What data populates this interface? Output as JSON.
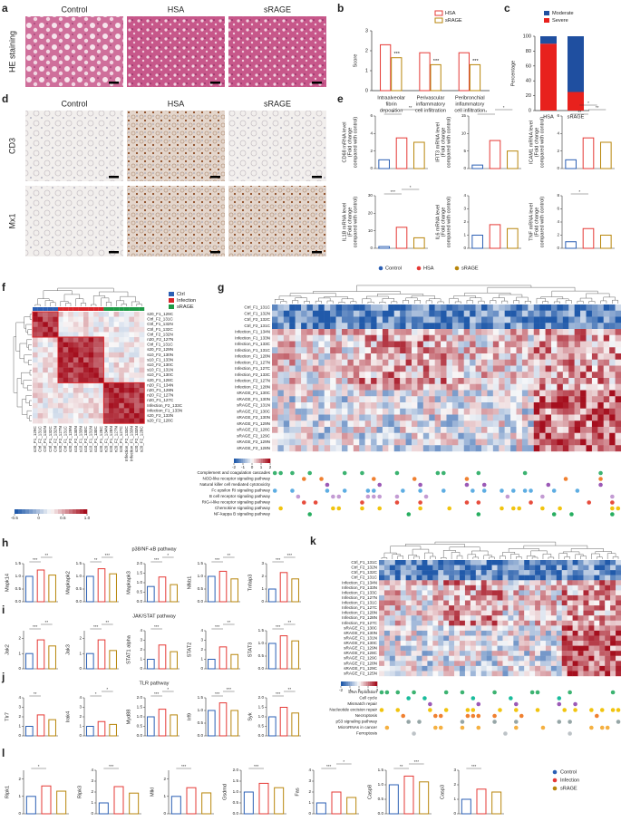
{
  "a": {
    "label": "a",
    "columns": [
      "Control",
      "HSA",
      "sRAGE"
    ],
    "row": "HE staining"
  },
  "b": {
    "label": "b",
    "type": "bar",
    "ylabel": "Score",
    "categories": [
      [
        "Intraalveolar",
        "fibrin",
        "deposition"
      ],
      [
        "Perivascular",
        "inflammatory",
        "cell infiltration"
      ],
      [
        "Peribronchial",
        "inflammatory",
        "cell infiltration"
      ]
    ],
    "series": [
      {
        "name": "HSA",
        "color": "#e53935",
        "values": [
          2.3,
          1.9,
          1.9
        ]
      },
      {
        "name": "sRAGE",
        "color": "#b8860b",
        "values": [
          1.65,
          1.3,
          1.3
        ]
      }
    ],
    "ylim": [
      0,
      3
    ],
    "yticks": [
      0,
      1,
      2,
      3
    ],
    "annotations": [
      "***",
      "***",
      "***"
    ]
  },
  "c": {
    "label": "c",
    "type": "stacked_bar",
    "ylabel": "Percentage",
    "categories": [
      "HSA",
      "sRAGE"
    ],
    "series": [
      {
        "name": "Severe",
        "color": "#e8211d",
        "values": [
          90,
          25
        ]
      },
      {
        "name": "Moderate",
        "color": "#1f4fa0",
        "values": [
          10,
          75
        ]
      }
    ],
    "ylim": [
      0,
      100
    ],
    "yticks": [
      0,
      20,
      40,
      60,
      80,
      100
    ]
  },
  "d": {
    "label": "d",
    "columns": [
      "Control",
      "HSA",
      "sRAGE"
    ],
    "rows": [
      "CD3",
      "Mx1"
    ]
  },
  "e": {
    "label": "e",
    "legend": [
      {
        "name": "Control",
        "color": "#2b5fb4"
      },
      {
        "name": "HSA",
        "color": "#e53935"
      },
      {
        "name": "sRAGE",
        "color": "#b8860b"
      }
    ],
    "charts": [
      {
        "type": "bar",
        "ylabel": [
          "CD68 mRNA level",
          "(Fold change",
          "compared with control)"
        ],
        "values": [
          1,
          3.5,
          3
        ],
        "ylim": [
          0,
          6
        ],
        "yticks": [
          0,
          2,
          4,
          6
        ],
        "sig": [
          "**",
          "**"
        ]
      },
      {
        "type": "bar",
        "ylabel": [
          "IFIT3 mRNA level",
          "(Fold change",
          "compared with control)"
        ],
        "values": [
          1,
          8,
          5
        ],
        "ylim": [
          0,
          15
        ],
        "yticks": [
          0,
          5,
          10,
          15
        ],
        "sig": [
          "*",
          "*"
        ]
      },
      {
        "type": "bar",
        "ylabel": [
          "ICAM1 mRNA level",
          "(Fold change",
          "compared with control)"
        ],
        "values": [
          1,
          3.5,
          3
        ],
        "ylim": [
          0,
          6
        ],
        "yticks": [
          0,
          2,
          4,
          6
        ],
        "sig": [
          "**",
          "**",
          "*"
        ]
      },
      {
        "type": "bar",
        "ylabel": [
          "IL1B mRNA level",
          "(Fold change",
          "compared with control)"
        ],
        "values": [
          1,
          12,
          6
        ],
        "ylim": [
          0,
          30
        ],
        "yticks": [
          0,
          10,
          20,
          30
        ],
        "sig": [
          "***",
          "*"
        ]
      },
      {
        "type": "bar",
        "ylabel": [
          "IL6 mRNA level",
          "(Fold change",
          "compared with control)"
        ],
        "values": [
          1,
          1.8,
          1.5
        ],
        "ylim": [
          0,
          4
        ],
        "yticks": [
          0,
          1,
          2,
          3,
          4
        ],
        "sig": []
      },
      {
        "type": "bar",
        "ylabel": [
          "TNF mRNA level",
          "(Fold change",
          "compared with control)"
        ],
        "values": [
          1,
          3,
          2
        ],
        "ylim": [
          0,
          8
        ],
        "yticks": [
          0,
          2,
          4,
          6,
          8
        ],
        "sig": [
          "*"
        ]
      }
    ]
  },
  "f": {
    "label": "f",
    "legend": [
      {
        "name": "Ctrl",
        "color": "#2b5fb4"
      },
      {
        "name": "Infection",
        "color": "#d9252a"
      },
      {
        "name": "sRAGE",
        "color": "#1e9a46"
      }
    ],
    "samples": [
      "s20_F1_129C",
      "Ctrl_F2_131C",
      "Ctrl_F1_132N",
      "Ctrl_F1_132C",
      "Ctrl_F2_132N",
      "n20_F2_127N",
      "Ctrl_F1_131C",
      "s20_F2_129N",
      "s10_F2_130N",
      "s10_F1_133N",
      "s10_F2_130C",
      "s10_F1_131N",
      "s10_F1_130C",
      "s20_F1_128C",
      "n20_F1_134N",
      "n20_F1_128N",
      "n20_F2_127N",
      "n20_F1_127C",
      "Infection_F2_133C",
      "Infection_F1_133N",
      "s20_F2_133N",
      "s20_F2_128C"
    ],
    "colorbar": [
      -0.5,
      0,
      0.5,
      {
        "value": 1,
        "label": "1.0"
      }
    ]
  },
  "g": {
    "label": "g",
    "samples": [
      "Ctrl_F1_131C",
      "Ctrl_F1_132N",
      "Ctrl_F2_132C",
      "Ctrl_F2_131C",
      "Infection_F1_134N",
      "Infection_F1_133N",
      "Infection_F1_133C",
      "Infection_F1_131C",
      "Infection_F1_128N",
      "Infection_F1_127N",
      "Infection_F1_127C",
      "Infection_F2_133C",
      "Infection_F2_127N",
      "Infection_F2_128N",
      "sRAGE_F1_130C",
      "sRAGE_F1_130N",
      "sRAGE_F2_131N",
      "sRAGE_F2_130C",
      "sRAGE_F2_130N",
      "sRAGE_F1_129N",
      "sRAGE_F2_128C",
      "sRAGE_F2_129C",
      "sRAGE_F2_129N",
      "sRAGE_F2_128N"
    ],
    "colorbar": [
      -2,
      -1,
      0,
      1,
      2
    ],
    "pathways": [
      {
        "name": "Complement and coagulation cascades",
        "color": "#3cb371"
      },
      {
        "name": "NOD-like receptor signaling pathway",
        "color": "#f08030"
      },
      {
        "name": "Natural killer cell mediated cytotoxicity",
        "color": "#9b59b6"
      },
      {
        "name": "Fc epsilon RI signaling pathway",
        "color": "#5dade2"
      },
      {
        "name": "B cell receptor signaling pathway",
        "color": "#c39bd3"
      },
      {
        "name": "RIG-I-like receptor signaling pathway",
        "color": "#e74c3c"
      },
      {
        "name": "Chemokine signaling pathway",
        "color": "#f1c40f"
      },
      {
        "name": "NF-kappa B signaling pathway",
        "color": "#27ae60"
      }
    ]
  },
  "h": {
    "label": "h",
    "title": "p38/NF-κB pathway",
    "charts": [
      {
        "type": "bar",
        "ylabel": [
          "Mapk14"
        ],
        "values": [
          1,
          1.25,
          1.05
        ],
        "ylim": [
          0,
          1.5
        ],
        "yticks": [
          {
            "value": 0,
            "label": "0.0"
          },
          0.5,
          {
            "value": 1,
            "label": "1.0"
          },
          1.5
        ],
        "sig": [
          "***",
          "**"
        ]
      },
      {
        "type": "bar",
        "ylabel": [
          "Mapkapk2"
        ],
        "values": [
          1,
          1.3,
          1.1
        ],
        "ylim": [
          0,
          1.5
        ],
        "yticks": [
          {
            "value": 0,
            "label": "0.0"
          },
          0.5,
          {
            "value": 1,
            "label": "1.0"
          },
          1.5
        ],
        "sig": [
          "**",
          "***"
        ]
      },
      {
        "type": "bar",
        "ylabel": [
          "Mapkapk3"
        ],
        "values": [
          0.8,
          1.3,
          0.9
        ],
        "ylim": [
          0,
          2
        ],
        "yticks": [
          {
            "value": 0,
            "label": "0.0"
          },
          0.5,
          {
            "value": 1,
            "label": "1.0"
          },
          1.5,
          {
            "value": 2,
            "label": "2.0"
          }
        ],
        "sig": [
          "***",
          "*"
        ]
      },
      {
        "type": "bar",
        "ylabel": [
          "Nfkb1"
        ],
        "values": [
          1,
          1.2,
          0.9
        ],
        "ylim": [
          0,
          1.5
        ],
        "yticks": [
          {
            "value": 0,
            "label": "0.0"
          },
          0.5,
          {
            "value": 1,
            "label": "1.0"
          },
          1.5
        ],
        "sig": [
          "***",
          "**"
        ]
      },
      {
        "type": "bar",
        "ylabel": [
          "Tnfaip3"
        ],
        "values": [
          1,
          2.3,
          1.8
        ],
        "ylim": [
          0,
          3
        ],
        "yticks": [
          0,
          1,
          2,
          3
        ],
        "sig": [
          "***",
          "***"
        ]
      }
    ]
  },
  "i": {
    "label": "i",
    "title": "JAK/STAT pathway",
    "charts": [
      {
        "type": "bar",
        "ylabel": [
          "Jak2"
        ],
        "values": [
          1,
          1.9,
          1.5
        ],
        "ylim": [
          0,
          2.5
        ],
        "yticks": [
          0,
          1,
          2
        ],
        "sig": [
          "***",
          "**"
        ]
      },
      {
        "type": "bar",
        "ylabel": [
          "Jak3"
        ],
        "values": [
          1,
          1.9,
          1.2
        ],
        "ylim": [
          0,
          2.5
        ],
        "yticks": [
          0,
          1,
          2
        ],
        "sig": [
          "***",
          "**"
        ]
      },
      {
        "type": "bar",
        "ylabel": [
          "STAT1 alpha"
        ],
        "values": [
          1,
          2.5,
          1.8
        ],
        "ylim": [
          0,
          4
        ],
        "yticks": [
          0,
          1,
          2,
          3,
          4
        ],
        "sig": [
          "***"
        ]
      },
      {
        "type": "bar",
        "ylabel": [
          "STAT2"
        ],
        "values": [
          1,
          2.3,
          1.5
        ],
        "ylim": [
          0,
          4
        ],
        "yticks": [
          0,
          1,
          2,
          3,
          4
        ],
        "sig": [
          "***",
          "**"
        ]
      },
      {
        "type": "bar",
        "ylabel": [
          "STAT3"
        ],
        "values": [
          1,
          1.3,
          1.1
        ],
        "ylim": [
          0,
          1.5
        ],
        "yticks": [
          {
            "value": 0,
            "label": "0.0"
          },
          0.5,
          {
            "value": 1,
            "label": "1.0"
          },
          1.5
        ],
        "sig": [
          "***",
          "**"
        ]
      }
    ]
  },
  "j": {
    "label": "j",
    "title": "TLR pathway",
    "charts": [
      {
        "type": "bar",
        "ylabel": [
          "Tlr7"
        ],
        "values": [
          1,
          2.2,
          1.7
        ],
        "ylim": [
          0,
          4
        ],
        "yticks": [
          0,
          1,
          2,
          3,
          4
        ],
        "sig": [
          "**"
        ]
      },
      {
        "type": "bar",
        "ylabel": [
          "Irak4"
        ],
        "values": [
          1,
          1.5,
          1.2
        ],
        "ylim": [
          0,
          4
        ],
        "yticks": [
          0,
          1,
          2,
          3,
          4
        ],
        "sig": [
          "*",
          "*"
        ]
      },
      {
        "type": "bar",
        "ylabel": [
          "Myd88"
        ],
        "values": [
          1,
          1.4,
          1.1
        ],
        "ylim": [
          0,
          2
        ],
        "yticks": [
          {
            "value": 0,
            "label": "0.0"
          },
          0.5,
          {
            "value": 1,
            "label": "1.0"
          },
          1.5,
          {
            "value": 2,
            "label": "2.0"
          }
        ],
        "sig": [
          "***",
          "*"
        ]
      },
      {
        "type": "bar",
        "ylabel": [
          "Irf9"
        ],
        "values": [
          1,
          1.3,
          1.0
        ],
        "ylim": [
          0,
          1.5
        ],
        "yticks": [
          {
            "value": 0,
            "label": "0.0"
          },
          0.5,
          {
            "value": 1,
            "label": "1.0"
          },
          1.5
        ],
        "sig": [
          "***",
          "***"
        ]
      },
      {
        "type": "bar",
        "ylabel": [
          "Syk"
        ],
        "values": [
          1,
          1.5,
          1.2
        ],
        "ylim": [
          0,
          2
        ],
        "yticks": [
          {
            "value": 0,
            "label": "0.0"
          },
          0.5,
          {
            "value": 1,
            "label": "1.0"
          },
          1.5,
          {
            "value": 2,
            "label": "2.0"
          }
        ],
        "sig": [
          "***",
          "**"
        ]
      }
    ]
  },
  "k": {
    "label": "k",
    "samples": [
      "Ctrl_F1_131C",
      "Ctrl_F2_132N",
      "Ctrl_F1_132C",
      "Ctrl_F2_131C",
      "Infection_F1_134N",
      "Infection_F2_133N",
      "Infection_F1_133C",
      "Infection_F2_127N",
      "Infection_F1_131C",
      "Infection_F1_127C",
      "Infection_F1_128N",
      "Infection_F2_128N",
      "Infection_F2_127C",
      "sRAGE_F1_130C",
      "sRAGE_F2_130N",
      "sRAGE_F1_131N",
      "sRAGE_F2_130C",
      "sRAGE_F1_129N",
      "sRAGE_F2_128C",
      "sRAGE_F2_129C",
      "sRAGE_F2_128N",
      "sRAGE_F1_129C",
      "sRAGE_F2_125N"
    ],
    "colorbar": [
      -2,
      -1,
      0,
      1,
      2
    ],
    "pathways": [
      {
        "name": "DNA replication",
        "color": "#3cb371"
      },
      {
        "name": "Cell cycle",
        "color": "#1abc9c"
      },
      {
        "name": "Mismatch repair",
        "color": "#9b59b6"
      },
      {
        "name": "Nucleotide excision repair",
        "color": "#f1c40f"
      },
      {
        "name": "Necroptosis",
        "color": "#f08030"
      },
      {
        "name": "p53 signaling pathway",
        "color": "#95a5a6"
      },
      {
        "name": "MicroRNAs in cancer",
        "color": "#f5b041"
      },
      {
        "name": "Ferroptosis",
        "color": "#bdc3c7"
      }
    ]
  },
  "l": {
    "label": "l",
    "legend": [
      {
        "name": "Control",
        "color": "#2b5fb4"
      },
      {
        "name": "Infection",
        "color": "#e53935"
      },
      {
        "name": "sRAGE",
        "color": "#b8860b"
      }
    ],
    "charts": [
      {
        "type": "bar",
        "ylabel": [
          "Ripk1"
        ],
        "values": [
          1,
          1.6,
          1.3
        ],
        "ylim": [
          0,
          2.5
        ],
        "yticks": [
          0,
          1,
          2
        ],
        "sig": [
          "*"
        ]
      },
      {
        "type": "bar",
        "ylabel": [
          "Ripk3"
        ],
        "values": [
          1,
          2.5,
          1.9
        ],
        "ylim": [
          0,
          4
        ],
        "yticks": [
          0,
          1,
          2,
          3,
          4
        ],
        "sig": [
          "***"
        ]
      },
      {
        "type": "bar",
        "ylabel": [
          "Mlkl"
        ],
        "values": [
          1,
          1.5,
          1.2
        ],
        "ylim": [
          0,
          2.5
        ],
        "yticks": [
          0,
          1,
          2
        ],
        "sig": [
          "***"
        ]
      },
      {
        "type": "bar",
        "ylabel": [
          "Gsdmd"
        ],
        "values": [
          1,
          1.4,
          1.2
        ],
        "ylim": [
          0,
          2
        ],
        "yticks": [
          {
            "value": 0,
            "label": "0.0"
          },
          0.5,
          {
            "value": 1,
            "label": "1.0"
          },
          1.5,
          {
            "value": 2,
            "label": "2.0"
          }
        ],
        "sig": [
          "***"
        ]
      },
      {
        "type": "bar",
        "ylabel": [
          "Fas"
        ],
        "values": [
          1,
          2,
          1.5
        ],
        "ylim": [
          0,
          4
        ],
        "yticks": [
          0,
          1,
          2,
          3,
          4
        ],
        "sig": [
          "***",
          "*"
        ]
      },
      {
        "type": "bar",
        "ylabel": [
          "Casp8"
        ],
        "values": [
          1,
          1.3,
          1.1
        ],
        "ylim": [
          0,
          1.5
        ],
        "yticks": [
          {
            "value": 0,
            "label": "0.0"
          },
          0.5,
          {
            "value": 1,
            "label": "1.0"
          },
          1.5
        ],
        "sig": [
          "**",
          "***"
        ]
      },
      {
        "type": "bar",
        "ylabel": [
          "Casp3"
        ],
        "values": [
          1,
          1.7,
          1.5
        ],
        "ylim": [
          0,
          3
        ],
        "yticks": [
          0,
          1,
          2,
          3
        ],
        "sig": [
          "***"
        ]
      }
    ]
  }
}
